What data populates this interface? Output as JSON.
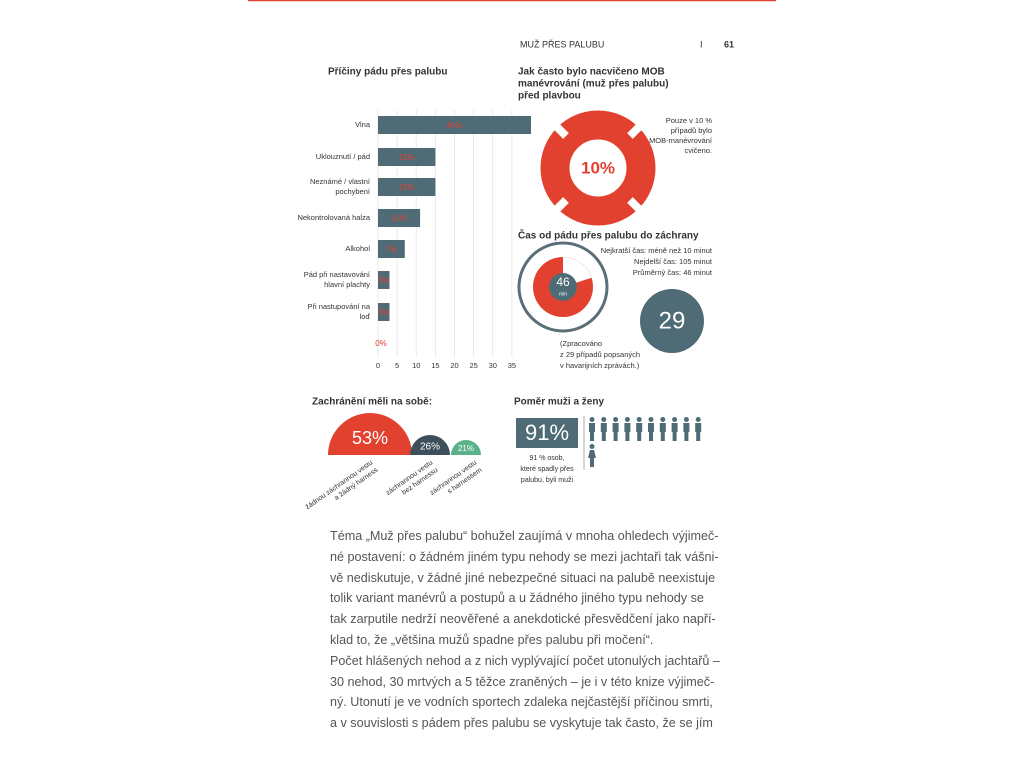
{
  "header": {
    "section": "MUŽ PŘES PALUBU",
    "separator": "I",
    "page_number": "61"
  },
  "chart_data": {
    "type": "bar",
    "title": "Příčiny pádu přes palubu",
    "categories": [
      "Vlna",
      "Uklouznutí / pád",
      "Neznámé / vlastní pochybení",
      "Nekontrolovaná halza",
      "Alkohol",
      "Pád při nastavování hlavní plachty",
      "Při nastupování na loď",
      null
    ],
    "values": [
      40,
      15,
      15,
      11,
      7,
      3,
      3,
      0
    ],
    "value_labels": [
      "40%",
      "15%",
      "15%",
      "11%",
      "7%",
      "3%",
      "3%",
      "0%"
    ],
    "color": "#4e6b76",
    "label_color": "#e3412f",
    "xlim": [
      0,
      40
    ],
    "xticks": [
      0,
      5,
      10,
      15,
      20,
      25,
      30,
      35
    ],
    "grid": true
  },
  "mob_training": {
    "title": [
      "Jak často bylo nacvičeno MOB",
      "manévrování (muž přes palubu)",
      "před plavbou"
    ],
    "center_label": "10%",
    "note": [
      "Pouze v 10 %",
      "případů bylo",
      "MOB-manévrování",
      "cvičeno."
    ]
  },
  "rescue_time": {
    "title": "Čas od pádu přes palubu do záchrany",
    "stats": [
      "Nejkratší čas: méně než 10 minut",
      "Nejdelší čas: 105 minut",
      "Průměrný čas: 46 minut"
    ],
    "clock_value": "46",
    "clock_unit": "min",
    "cases": "29",
    "note": [
      "(Zpracováno",
      "z 29 případů popsaných",
      "v havarijních zprávách.)"
    ]
  },
  "lifejackets": {
    "title": "Zachránění měli na sobě:",
    "items": [
      {
        "value": "53%",
        "label": [
          "žádnou záchrannou vestu",
          "a žádný harness"
        ]
      },
      {
        "value": "26%",
        "label": [
          "záchrannou vestu",
          "bez harnessu"
        ]
      },
      {
        "value": "21%",
        "label": [
          "záchrannou vestu",
          "s harnessem"
        ]
      }
    ]
  },
  "gender": {
    "title": "Poměr muži a ženy",
    "value": "91%",
    "note": [
      "91 % osob,",
      "které spadly přes",
      "palubu, byli muži"
    ]
  },
  "body": {
    "lines": [
      "Téma „Muž přes palubu“ bohužel zaujímá v mnoha ohledech výjimeč-",
      "né postavení: o žádném jiném typu nehody se mezi jachtaři tak vášni-",
      "vě nediskutuje, v žádné jiné nebezpečné situaci na palubě neexistuje",
      "tolik variant manévrů a postupů a u žádného jiného typu nehody se",
      "tak zarputile nedrží neověřené a anekdotické přesvědčení jako napří-",
      "klad to, že „většina mužů spadne přes palubu při močení“.",
      "Počet hlášených nehod a z nich vyplývající počet utonulých jachtařů –",
      "30 nehod, 30 mrtvých a 5 těžce zraněných – je i v této knize výjimeč-",
      "ný. Utonutí je ve vodních sportech zdaleka nejčastější příčinou smrti,",
      "a v souvislosti s pádem přes palubu se vyskytuje tak často, že se jím"
    ]
  }
}
